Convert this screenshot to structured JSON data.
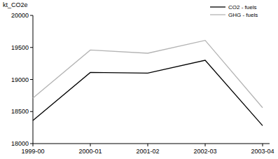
{
  "chart_data": {
    "type": "line",
    "y_label": "kt_CO2e",
    "categories": [
      "1999-00",
      "2000-01",
      "2001-02",
      "2002-03",
      "2003-04"
    ],
    "series": [
      {
        "name": "CO2 - fuels",
        "color": "#000000",
        "values": [
          18360,
          19110,
          19100,
          19300,
          18280
        ]
      },
      {
        "name": "GHG - fuels",
        "color": "#b4b4b4",
        "values": [
          18710,
          19460,
          19410,
          19610,
          18560
        ]
      }
    ],
    "ylim": [
      18000,
      20000
    ],
    "yticks": [
      18000,
      18500,
      19000,
      19500,
      20000
    ],
    "legend": "top-right",
    "grid": false
  }
}
